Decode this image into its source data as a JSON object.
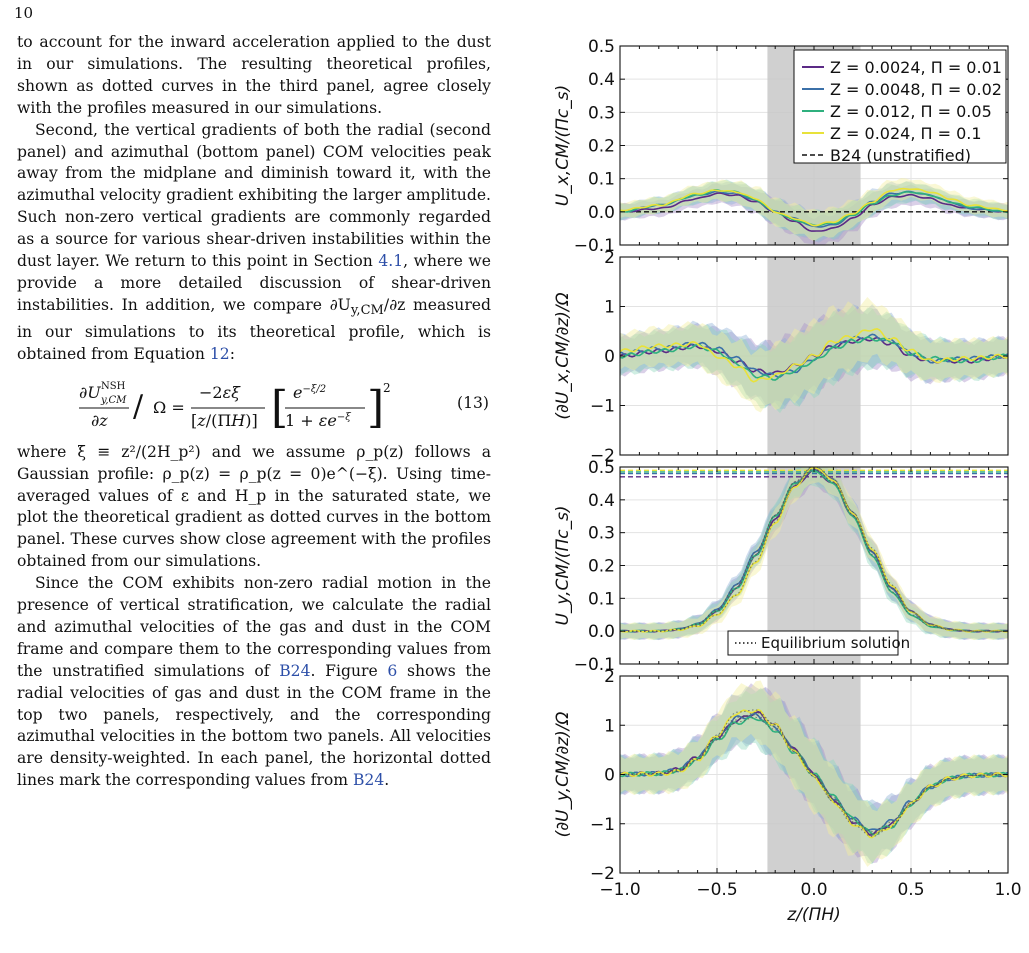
{
  "page": {
    "number": "10"
  },
  "text": {
    "p1": "to account for the inward acceleration applied to the dust in our simulations. The resulting theoretical profiles, shown as dotted curves in the third panel, agree closely with the profiles measured in our simulations.",
    "p2a": "Second, the vertical gradients of both the radial (second panel) and azimuthal (bottom panel) COM velocities peak away from the midplane and diminish toward it, with the azimuthal velocity gradient exhibiting the larger amplitude. Such non-zero vertical gradients are commonly regarded as a source for various shear-driven instabilities within the dust layer. We return to this point in Section ",
    "p2_link1": "4.1",
    "p2b": ", where we provide a more detailed discussion of shear-driven instabilities. In addition, we compare ∂U",
    "p2_sub": "y,CM",
    "p2c": "/∂z measured in our simulations to its theoretical profile, which is obtained from Equation ",
    "p2_link2": "12",
    "p2d": ":",
    "eq_number": "(13)",
    "p3": "where ξ ≡ z²/(2H_p²) and we assume ρ_p(z) follows a Gaussian profile: ρ_p(z) = ρ_p(z = 0)e^(−ξ). Using time-averaged values of ε and H_p in the saturated state, we plot the theoretical gradient as dotted curves in the bottom panel. These curves show close agreement with the profiles obtained from our simulations.",
    "p4a": "Since the COM exhibits non-zero radial motion in the presence of vertical stratification, we calculate the radial and azimuthal velocities of the gas and dust in the COM frame and compare them to the corresponding values from the unstratified simulations of ",
    "p4_link1": "B24",
    "p4b": ". Figure ",
    "p4_link2": "6",
    "p4c": " shows the radial velocities of gas and dust in the COM frame in the top two panels, respectively, and the corresponding azimuthal velocities in the bottom two panels. All velocities are density-weighted. In each panel, the horizontal dotted lines mark the corresponding values from ",
    "p4_link3": "B24",
    "p4d": "."
  },
  "figure": {
    "xlabel": "z/(ΠH)",
    "series_colors": [
      "#5b2a86",
      "#3b70a8",
      "#2fb07e",
      "#e8e23a"
    ],
    "band_colors": [
      "#a890c9",
      "#8fb1d6",
      "#8fd6bc",
      "#f2ee9a"
    ],
    "shade_color": "#c8c8c8",
    "ref_color": "#111111",
    "legend_entries": [
      "Z = 0.0024, Π = 0.01",
      "Z = 0.0048, Π = 0.02",
      "Z = 0.012, Π = 0.05",
      "Z = 0.024, Π = 0.1"
    ],
    "legend_ref": "B24 (unstratified)",
    "eq_legend": "Equilibrium solution"
  },
  "chart_data": [
    {
      "type": "line",
      "title": "",
      "ylabel": "U_x,CM/(Πc_s)",
      "xlabel": "",
      "xlim": [
        -1.0,
        1.0
      ],
      "ylim": [
        -0.1,
        0.5
      ],
      "yticks": [
        "−0.1",
        "0.0",
        "0.1",
        "0.2",
        "0.3",
        "0.4",
        "0.5"
      ],
      "shaded_region": [
        -0.24,
        0.24
      ],
      "reference_lines": {
        "name": "B24 (unstratified)",
        "style": "dashed",
        "values": [
          0.0
        ]
      },
      "legend": "top-right",
      "x": [
        -1.0,
        -0.8,
        -0.6,
        -0.5,
        -0.4,
        -0.3,
        -0.2,
        -0.1,
        0.0,
        0.1,
        0.2,
        0.3,
        0.4,
        0.5,
        0.6,
        0.7,
        0.8,
        1.0
      ],
      "series": [
        {
          "name": "Z = 0.0024, Π = 0.01",
          "values": [
            0.0,
            0.01,
            0.04,
            0.055,
            0.05,
            0.03,
            0.0,
            -0.03,
            -0.06,
            -0.05,
            -0.02,
            0.02,
            0.045,
            0.05,
            0.04,
            0.02,
            0.01,
            0.0
          ]
        },
        {
          "name": "Z = 0.0048, Π = 0.02",
          "values": [
            0.0,
            0.02,
            0.05,
            0.06,
            0.055,
            0.035,
            0.0,
            -0.02,
            -0.045,
            -0.04,
            -0.01,
            0.03,
            0.055,
            0.06,
            0.05,
            0.03,
            0.01,
            0.0
          ]
        },
        {
          "name": "Z = 0.012, Π = 0.05",
          "values": [
            0.0,
            0.02,
            0.05,
            0.065,
            0.06,
            0.035,
            0.0,
            -0.025,
            -0.04,
            -0.035,
            -0.01,
            0.025,
            0.05,
            0.06,
            0.05,
            0.03,
            0.015,
            0.0
          ]
        },
        {
          "name": "Z = 0.024, Π = 0.1",
          "values": [
            0.005,
            0.02,
            0.055,
            0.065,
            0.06,
            0.04,
            0.0,
            -0.02,
            -0.04,
            -0.03,
            -0.005,
            0.03,
            0.065,
            0.07,
            0.06,
            0.04,
            0.02,
            0.005
          ]
        }
      ]
    },
    {
      "type": "line",
      "title": "",
      "ylabel": "(∂U_x,CM/∂z)/Ω",
      "xlabel": "",
      "xlim": [
        -1.0,
        1.0
      ],
      "ylim": [
        -2,
        2
      ],
      "yticks": [
        "−2",
        "−1",
        "0",
        "1",
        "2"
      ],
      "shaded_region": [
        -0.24,
        0.24
      ],
      "x": [
        -1.0,
        -0.8,
        -0.6,
        -0.5,
        -0.4,
        -0.3,
        -0.2,
        -0.1,
        0.0,
        0.1,
        0.2,
        0.3,
        0.4,
        0.5,
        0.6,
        0.8,
        1.0
      ],
      "series": [
        {
          "name": "Z = 0.0024, Π = 0.01",
          "values": [
            0.0,
            0.1,
            0.2,
            0.1,
            -0.1,
            -0.3,
            -0.35,
            -0.2,
            0.0,
            0.2,
            0.3,
            0.35,
            0.25,
            0.0,
            -0.1,
            -0.1,
            0.0
          ]
        },
        {
          "name": "Z = 0.0048, Π = 0.02",
          "values": [
            0.05,
            0.15,
            0.25,
            0.15,
            -0.05,
            -0.3,
            -0.4,
            -0.3,
            -0.05,
            0.2,
            0.35,
            0.4,
            0.3,
            0.05,
            -0.1,
            -0.05,
            0.0
          ]
        },
        {
          "name": "Z = 0.012, Π = 0.05",
          "values": [
            0.0,
            0.1,
            0.2,
            0.1,
            -0.15,
            -0.4,
            -0.45,
            -0.3,
            -0.1,
            0.15,
            0.3,
            0.35,
            0.3,
            0.05,
            -0.05,
            -0.1,
            0.0
          ]
        },
        {
          "name": "Z = 0.024, Π = 0.1",
          "values": [
            0.1,
            0.2,
            0.25,
            0.0,
            -0.2,
            -0.5,
            -0.4,
            -0.2,
            0.0,
            0.3,
            0.4,
            0.55,
            0.35,
            0.1,
            -0.1,
            -0.05,
            0.0
          ]
        }
      ]
    },
    {
      "type": "line",
      "title": "",
      "ylabel": "U_y,CM/(Πc_s)",
      "xlabel": "",
      "xlim": [
        -1.0,
        1.0
      ],
      "ylim": [
        -0.1,
        0.5
      ],
      "yticks": [
        "−0.1",
        "0.0",
        "0.1",
        "0.2",
        "0.3",
        "0.4",
        "0.5"
      ],
      "shaded_region": [
        -0.24,
        0.24
      ],
      "reference_lines": {
        "style": "dashed",
        "values": [
          0.47,
          0.48,
          0.485,
          0.49
        ]
      },
      "equilibrium_solution": {
        "name": "Equilibrium solution",
        "style": "dotted"
      },
      "legend": "bottom-center",
      "x": [
        -1.0,
        -0.8,
        -0.7,
        -0.6,
        -0.5,
        -0.4,
        -0.3,
        -0.2,
        -0.1,
        0.0,
        0.1,
        0.2,
        0.3,
        0.4,
        0.5,
        0.6,
        0.7,
        0.8,
        1.0
      ],
      "series": [
        {
          "name": "Z = 0.0024, Π = 0.01",
          "values": [
            0.0,
            0.0,
            0.005,
            0.02,
            0.06,
            0.13,
            0.23,
            0.34,
            0.44,
            0.49,
            0.45,
            0.35,
            0.24,
            0.13,
            0.06,
            0.02,
            0.005,
            0.0,
            0.0
          ]
        },
        {
          "name": "Z = 0.0048, Π = 0.02",
          "values": [
            0.0,
            0.0,
            0.006,
            0.022,
            0.065,
            0.14,
            0.24,
            0.35,
            0.45,
            0.5,
            0.46,
            0.36,
            0.24,
            0.13,
            0.06,
            0.02,
            0.005,
            0.0,
            0.0
          ]
        },
        {
          "name": "Z = 0.012, Π = 0.05",
          "values": [
            0.0,
            0.0,
            0.005,
            0.02,
            0.06,
            0.13,
            0.23,
            0.35,
            0.45,
            0.49,
            0.45,
            0.35,
            0.23,
            0.12,
            0.05,
            0.015,
            0.004,
            0.0,
            0.0
          ]
        },
        {
          "name": "Z = 0.024, Π = 0.1",
          "values": [
            0.0,
            0.0,
            0.004,
            0.015,
            0.05,
            0.11,
            0.21,
            0.33,
            0.44,
            0.5,
            0.46,
            0.36,
            0.25,
            0.14,
            0.06,
            0.02,
            0.005,
            0.0,
            0.0
          ]
        }
      ]
    },
    {
      "type": "line",
      "title": "",
      "ylabel": "(∂U_y,CM/∂z)/Ω",
      "xlabel": "z/(ΠH)",
      "xlim": [
        -1.0,
        1.0
      ],
      "ylim": [
        -2,
        2
      ],
      "yticks": [
        "−2",
        "−1",
        "0",
        "1",
        "2"
      ],
      "xticks": [
        "−1.0",
        "−0.5",
        "0.0",
        "0.5",
        "1.0"
      ],
      "shaded_region": [
        -0.24,
        0.24
      ],
      "x": [
        -1.0,
        -0.8,
        -0.7,
        -0.6,
        -0.5,
        -0.4,
        -0.3,
        -0.2,
        -0.1,
        0.0,
        0.1,
        0.2,
        0.3,
        0.4,
        0.5,
        0.6,
        0.7,
        0.8,
        1.0
      ],
      "series": [
        {
          "name": "Z = 0.0024, Π = 0.01",
          "values": [
            0.0,
            0.02,
            0.1,
            0.35,
            0.75,
            1.1,
            1.25,
            1.0,
            0.5,
            0.0,
            -0.5,
            -0.95,
            -1.2,
            -1.0,
            -0.6,
            -0.25,
            -0.08,
            -0.02,
            0.0
          ]
        },
        {
          "name": "Z = 0.0048, Π = 0.02",
          "values": [
            0.0,
            0.02,
            0.1,
            0.35,
            0.75,
            1.15,
            1.2,
            0.95,
            0.5,
            0.0,
            -0.5,
            -0.9,
            -1.15,
            -0.95,
            -0.55,
            -0.25,
            -0.08,
            -0.02,
            0.0
          ]
        },
        {
          "name": "Z = 0.012, Π = 0.05",
          "values": [
            0.0,
            0.02,
            0.08,
            0.3,
            0.7,
            1.05,
            1.15,
            0.9,
            0.45,
            0.0,
            -0.45,
            -0.9,
            -1.2,
            -1.05,
            -0.6,
            -0.25,
            -0.08,
            -0.02,
            0.0
          ]
        },
        {
          "name": "Z = 0.024, Π = 0.1",
          "values": [
            0.0,
            0.01,
            0.06,
            0.3,
            0.8,
            1.25,
            1.3,
            1.0,
            0.45,
            -0.05,
            -0.55,
            -1.0,
            -1.25,
            -1.05,
            -0.6,
            -0.25,
            -0.08,
            -0.02,
            0.0
          ]
        }
      ]
    }
  ]
}
